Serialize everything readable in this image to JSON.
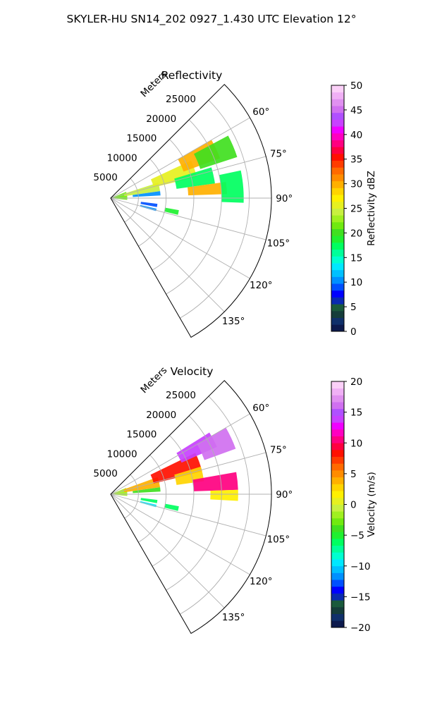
{
  "figure_title": "SKYLER-HU  SN14_202  0927_1.430 UTC Elevation 12°",
  "chart_data": [
    {
      "type": "heatmap",
      "subtype": "polar-sector",
      "title": "Reflectivity",
      "radial_label": "Meters",
      "radial_ticks": [
        5000,
        10000,
        15000,
        20000,
        25000
      ],
      "radial_tick_labels": [
        "5000",
        "10000",
        "15000",
        "20000",
        "25000"
      ],
      "radial_max": 29000,
      "theta_range": [
        45,
        150
      ],
      "theta_ticks": [
        60,
        75,
        90,
        105,
        120,
        135
      ],
      "theta_tick_labels": [
        "60°",
        "75°",
        "90°",
        "105°",
        "120°",
        "135°"
      ],
      "grid": true,
      "colorbar": {
        "label": "Reflectivity dBZ",
        "range": [
          0,
          50
        ],
        "ticks": [
          0,
          5,
          10,
          15,
          20,
          25,
          30,
          35,
          40,
          45,
          50
        ],
        "tick_labels": [
          "0",
          "5",
          "10",
          "15",
          "20",
          "25",
          "30",
          "35",
          "40",
          "45",
          "50"
        ],
        "colors": [
          "#0d1a4d",
          "#10306a",
          "#153d3a",
          "#1a5a3c",
          "#0a2ab0",
          "#0000ff",
          "#0050ff",
          "#0090ff",
          "#00c0ff",
          "#00e8ff",
          "#00ffd0",
          "#00ff9a",
          "#00ff60",
          "#20f030",
          "#40e020",
          "#70ea10",
          "#a0f020",
          "#c8f040",
          "#e6f020",
          "#fff000",
          "#ffd400",
          "#ffb000",
          "#ff8c00",
          "#ff6a00",
          "#ff3c00",
          "#ff1000",
          "#ff0040",
          "#ff0080",
          "#ff00c0",
          "#f000ff",
          "#c840ff",
          "#b050ff",
          "#d070f0",
          "#e090f0",
          "#f0b0f5",
          "#fbd0f8"
        ]
      },
      "regions": [
        {
          "r0": 0,
          "r1": 3000,
          "t0": 68,
          "t1": 96,
          "value": 22
        },
        {
          "r0": 2500,
          "r1": 9000,
          "t0": 72,
          "t1": 82,
          "value": 24
        },
        {
          "r0": 8000,
          "r1": 16000,
          "t0": 65,
          "t1": 76,
          "value": 26
        },
        {
          "r0": 14000,
          "r1": 21000,
          "t0": 60,
          "t1": 70,
          "value": 30
        },
        {
          "r0": 17000,
          "r1": 24000,
          "t0": 62,
          "t1": 72,
          "value": 20
        },
        {
          "r0": 12000,
          "r1": 19000,
          "t0": 73,
          "t1": 82,
          "value": 18
        },
        {
          "r0": 14000,
          "r1": 21000,
          "t0": 82,
          "t1": 88,
          "value": 30
        },
        {
          "r0": 20000,
          "r1": 24000,
          "t0": 78,
          "t1": 92,
          "value": 18
        },
        {
          "r0": 4000,
          "r1": 9000,
          "t0": 82,
          "t1": 87,
          "value": 11
        },
        {
          "r0": 5500,
          "r1": 8500,
          "t0": 97,
          "t1": 101,
          "value": 9
        },
        {
          "r0": 5500,
          "r1": 8500,
          "t0": 103,
          "t1": 106,
          "value": 10
        },
        {
          "r0": 10000,
          "r1": 12500,
          "t0": 100,
          "t1": 104,
          "value": 19
        }
      ]
    },
    {
      "type": "heatmap",
      "subtype": "polar-sector",
      "title": "Velocity",
      "radial_label": "Meters",
      "radial_ticks": [
        5000,
        10000,
        15000,
        20000,
        25000
      ],
      "radial_tick_labels": [
        "5000",
        "10000",
        "15000",
        "20000",
        "25000"
      ],
      "radial_max": 29000,
      "theta_range": [
        45,
        150
      ],
      "theta_ticks": [
        60,
        75,
        90,
        105,
        120,
        135
      ],
      "theta_tick_labels": [
        "60°",
        "75°",
        "90°",
        "105°",
        "120°",
        "135°"
      ],
      "grid": true,
      "colorbar": {
        "label": "Velocity (m/s)",
        "range": [
          -20,
          20
        ],
        "ticks": [
          -20,
          -15,
          -10,
          -5,
          0,
          5,
          10,
          15,
          20
        ],
        "tick_labels": [
          "−20",
          "−15",
          "−10",
          "−5",
          "0",
          "5",
          "10",
          "15",
          "20"
        ],
        "colors": [
          "#0d1a4d",
          "#10306a",
          "#153d3a",
          "#1a5a3c",
          "#0a2ab0",
          "#0000ff",
          "#0050ff",
          "#0090ff",
          "#00c0ff",
          "#00e8ff",
          "#00ffd0",
          "#00ff9a",
          "#00ff60",
          "#20f030",
          "#40e020",
          "#70ea10",
          "#a0f020",
          "#c8f040",
          "#e6f020",
          "#fff000",
          "#ffd400",
          "#ffb000",
          "#ff8c00",
          "#ff6a00",
          "#ff3c00",
          "#ff1000",
          "#ff0040",
          "#ff0080",
          "#ff00c0",
          "#f000ff",
          "#c840ff",
          "#b050ff",
          "#d070f0",
          "#e090f0",
          "#f0b0f5",
          "#fbd0f8"
        ]
      },
      "regions": [
        {
          "r0": 0,
          "r1": 3000,
          "t0": 68,
          "t1": 96,
          "value": -2
        },
        {
          "r0": 2500,
          "r1": 9000,
          "t0": 70,
          "t1": 82,
          "value": 4
        },
        {
          "r0": 8000,
          "r1": 17000,
          "t0": 64,
          "t1": 76,
          "value": 8
        },
        {
          "r0": 14000,
          "r1": 21000,
          "t0": 58,
          "t1": 66,
          "value": 14
        },
        {
          "r0": 18000,
          "r1": 24000,
          "t0": 60,
          "t1": 70,
          "value": 16
        },
        {
          "r0": 12000,
          "r1": 17000,
          "t0": 73,
          "t1": 82,
          "value": 3
        },
        {
          "r0": 15000,
          "r1": 23000,
          "t0": 80,
          "t1": 88,
          "value": 10
        },
        {
          "r0": 18000,
          "r1": 23000,
          "t0": 88,
          "t1": 93,
          "value": 2
        },
        {
          "r0": 4000,
          "r1": 9000,
          "t0": 82,
          "t1": 87,
          "value": -4
        },
        {
          "r0": 5500,
          "r1": 8500,
          "t0": 97,
          "t1": 101,
          "value": -6
        },
        {
          "r0": 5500,
          "r1": 8500,
          "t0": 103,
          "t1": 106,
          "value": -10
        },
        {
          "r0": 10000,
          "r1": 12500,
          "t0": 100,
          "t1": 104,
          "value": -6
        }
      ]
    }
  ]
}
